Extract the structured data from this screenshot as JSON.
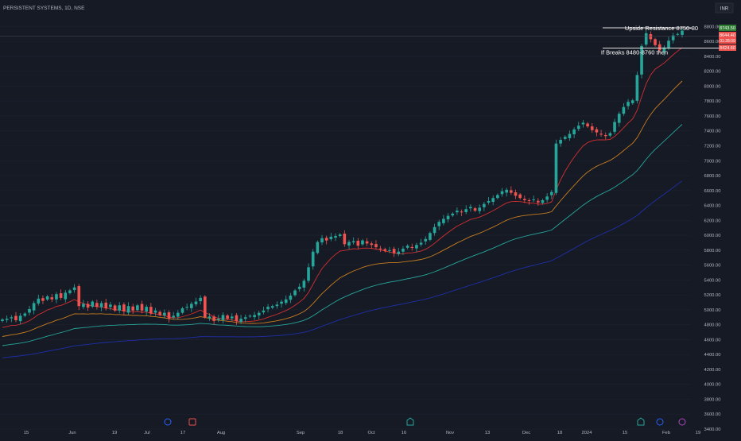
{
  "header": {
    "symbol": "PERSISTENT SYSTEMS, 1D, NSE",
    "currency": "INR"
  },
  "annotations": {
    "resistance": "Upside Resistance 8750-80",
    "breaks": "If Breaks 8480-8760 then"
  },
  "price_labels": {
    "top": "8743.50",
    "current": "8644.40",
    "countdown": "01:28:09",
    "level": "8424.60"
  },
  "colors": {
    "bg": "#161a25",
    "up": "#26a69a",
    "down": "#ef5350",
    "ema_red": "#d32f2f",
    "ema_orange": "#c77c1f",
    "ema_teal": "#26a69a",
    "ema_blue": "#1e2fa8",
    "axis_text": "#b2b5be"
  },
  "chart_data": {
    "type": "candlestick",
    "title": "PERSISTENT SYSTEMS, 1D, NSE",
    "y_ticks": [
      "8800.00",
      "8600.00",
      "8400.00",
      "8200.00",
      "8000.00",
      "7800.00",
      "7600.00",
      "7400.00",
      "7200.00",
      "7000.00",
      "6800.00",
      "6600.00",
      "6400.00",
      "6200.00",
      "6000.00",
      "5800.00",
      "5600.00",
      "5400.00",
      "5200.00",
      "5000.00",
      "4800.00",
      "4600.00",
      "4400.00",
      "4200.00",
      "4000.00",
      "3800.00",
      "3600.00",
      "3400.00"
    ],
    "x_ticks": [
      "15",
      "Jun",
      "19",
      "Jul",
      "17",
      "Aug",
      "Sep",
      "18",
      "Oct",
      "16",
      "Nov",
      "13",
      "Dec",
      "18",
      "2024",
      "15",
      "Feb",
      "19"
    ],
    "ylim": [
      3400,
      8900
    ],
    "levels": [
      {
        "label": "Upside Resistance 8750-80",
        "value": 8760
      },
      {
        "label": "If Breaks 8480-8760 then",
        "value": 8480
      }
    ],
    "close_series": [
      4870,
      4880,
      4900,
      4860,
      4920,
      4950,
      5010,
      5090,
      5150,
      5120,
      5180,
      5140,
      5210,
      5160,
      5230,
      5260,
      5300,
      5050,
      5080,
      5030,
      5110,
      5040,
      5090,
      5020,
      5070,
      4990,
      5060,
      4980,
      5050,
      4990,
      5060,
      4990,
      5040,
      4950,
      4990,
      4930,
      4960,
      4880,
      4920,
      4960,
      5020,
      5040,
      5080,
      5110,
      5160,
      4900,
      4910,
      4850,
      4880,
      4930,
      4880,
      4910,
      4850,
      4880,
      4900,
      4920,
      4930,
      4960,
      4990,
      5040,
      5050,
      5070,
      5110,
      5140,
      5190,
      5260,
      5310,
      5390,
      5570,
      5780,
      5910,
      5960,
      5930,
      5980,
      5990,
      6010,
      5880,
      5910,
      5920,
      5860,
      5930,
      5890,
      5870,
      5840,
      5820,
      5790,
      5800,
      5760,
      5780,
      5820,
      5860,
      5830,
      5870,
      5900,
      5950,
      6030,
      6110,
      6180,
      6220,
      6260,
      6290,
      6330,
      6310,
      6350,
      6380,
      6330,
      6370,
      6420,
      6460,
      6500,
      6540,
      6590,
      6610,
      6570,
      6530,
      6500,
      6470,
      6460,
      6480,
      6440,
      6470,
      6520,
      6580,
      7230,
      7280,
      7320,
      7360,
      7420,
      7470,
      7510,
      7460,
      7410,
      7380,
      7350,
      7330,
      7370,
      7520,
      7630,
      7720,
      7790,
      7810,
      8150,
      8540,
      8710,
      8630,
      8550,
      8480,
      8520,
      8610,
      8680,
      8700,
      8744
    ]
  }
}
